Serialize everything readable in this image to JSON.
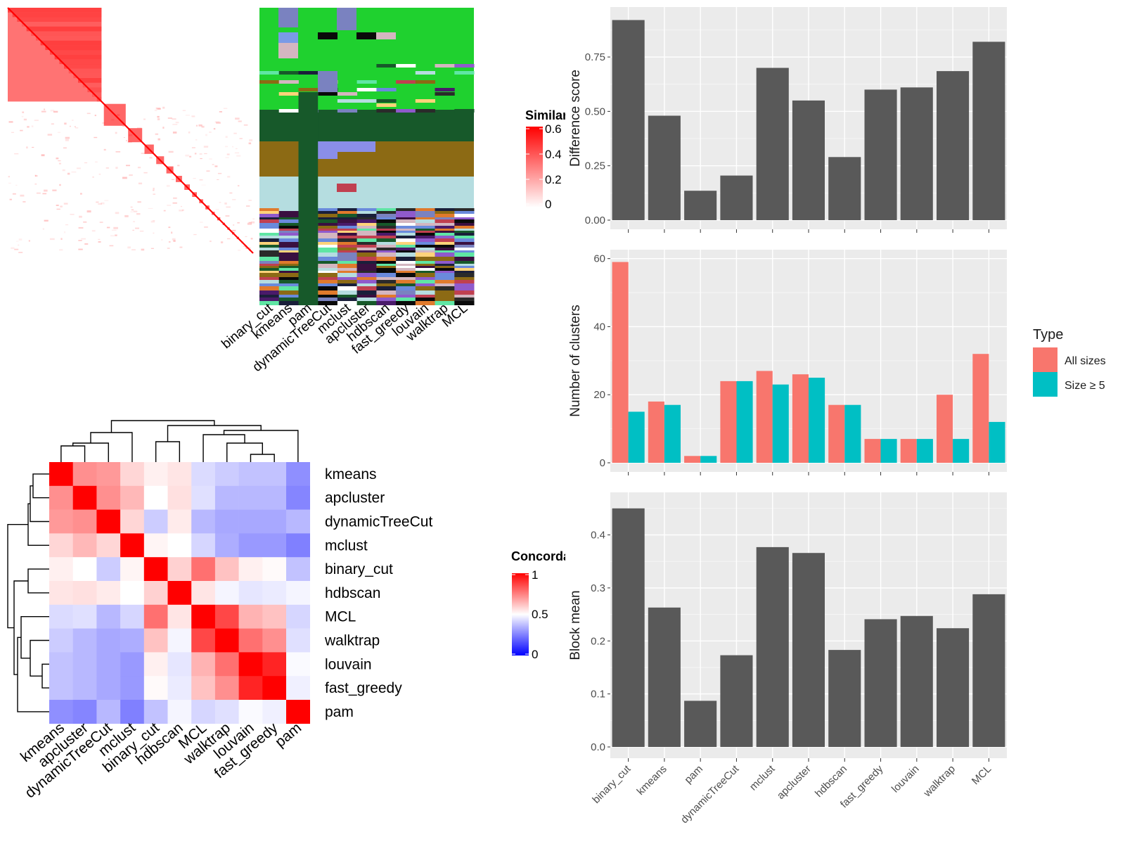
{
  "methods_x": [
    "binary_cut",
    "kmeans",
    "pam",
    "dynamicTreeCut",
    "mclust",
    "apcluster",
    "hdbscan",
    "fast_greedy",
    "louvain",
    "walktrap",
    "MCL"
  ],
  "colors": {
    "panel_bg": "#ebebeb",
    "grid_major": "#ffffff",
    "bar": "#595959",
    "all_sizes": "#f8766d",
    "size_ge5": "#00bfc4",
    "sim_max": "#ff0000",
    "conc_high": "#ff0000",
    "conc_mid": "#ffffff",
    "conc_low": "#0000ff"
  },
  "similarity_heatmap": {
    "legend_title": "Similarity",
    "legend_ticks": [
      "0.6",
      "0.4",
      "0.2",
      "0"
    ],
    "block_sizes": [
      120,
      28,
      18,
      12,
      10,
      9,
      8,
      7,
      6,
      5,
      5,
      4,
      4,
      3,
      3,
      3,
      3,
      2,
      2,
      2
    ]
  },
  "membership_panel": {
    "labels": [
      "binary_cut",
      "kmeans",
      "pam",
      "dynamicTreeCut",
      "mclust",
      "apcluster",
      "hdbscan",
      "fast_greedy",
      "louvain",
      "walktrap",
      "MCL"
    ]
  },
  "concordance_heatmap": {
    "legend_title": "Concordance",
    "legend_ticks": [
      "1",
      "0.5",
      "0"
    ],
    "row_labels": [
      "kmeans",
      "apcluster",
      "dynamicTreeCut",
      "mclust",
      "binary_cut",
      "hdbscan",
      "MCL",
      "walktrap",
      "louvain",
      "fast_greedy",
      "pam"
    ],
    "col_labels": [
      "kmeans",
      "apcluster",
      "dynamicTreeCut",
      "mclust",
      "binary_cut",
      "hdbscan",
      "MCL",
      "walktrap",
      "louvain",
      "fast_greedy",
      "pam"
    ],
    "values": [
      [
        1.0,
        0.72,
        0.7,
        0.58,
        0.53,
        0.55,
        0.43,
        0.4,
        0.38,
        0.38,
        0.28
      ],
      [
        0.72,
        1.0,
        0.72,
        0.64,
        0.5,
        0.56,
        0.44,
        0.36,
        0.36,
        0.36,
        0.26
      ],
      [
        0.7,
        0.72,
        1.0,
        0.58,
        0.4,
        0.54,
        0.36,
        0.33,
        0.33,
        0.33,
        0.36
      ],
      [
        0.58,
        0.64,
        0.58,
        1.0,
        0.52,
        0.5,
        0.42,
        0.34,
        0.3,
        0.3,
        0.25
      ],
      [
        0.53,
        0.5,
        0.4,
        0.52,
        1.0,
        0.59,
        0.78,
        0.62,
        0.53,
        0.51,
        0.38
      ],
      [
        0.55,
        0.56,
        0.54,
        0.5,
        0.59,
        1.0,
        0.55,
        0.48,
        0.45,
        0.46,
        0.48
      ],
      [
        0.43,
        0.44,
        0.36,
        0.42,
        0.78,
        0.55,
        1.0,
        0.86,
        0.65,
        0.62,
        0.42
      ],
      [
        0.4,
        0.36,
        0.33,
        0.34,
        0.62,
        0.48,
        0.86,
        1.0,
        0.78,
        0.72,
        0.44
      ],
      [
        0.38,
        0.36,
        0.33,
        0.3,
        0.53,
        0.45,
        0.65,
        0.78,
        1.0,
        0.93,
        0.49
      ],
      [
        0.38,
        0.36,
        0.33,
        0.3,
        0.51,
        0.46,
        0.62,
        0.72,
        0.93,
        1.0,
        0.47
      ],
      [
        0.28,
        0.26,
        0.36,
        0.25,
        0.38,
        0.48,
        0.42,
        0.44,
        0.49,
        0.47,
        1.0
      ]
    ]
  },
  "chart_data": [
    {
      "type": "bar",
      "title": "",
      "xlabel": "",
      "ylabel": "Difference score",
      "categories": [
        "binary_cut",
        "kmeans",
        "pam",
        "dynamicTreeCut",
        "mclust",
        "apcluster",
        "hdbscan",
        "fast_greedy",
        "louvain",
        "walktrap",
        "MCL"
      ],
      "values": [
        0.92,
        0.48,
        0.135,
        0.205,
        0.7,
        0.55,
        0.29,
        0.6,
        0.61,
        0.685,
        0.82
      ],
      "ylim": [
        0,
        0.97
      ],
      "yticks": [
        "0.00",
        "0.25",
        "0.50",
        "0.75"
      ],
      "grid": true
    },
    {
      "type": "bar",
      "title": "",
      "xlabel": "",
      "ylabel": "Number of clusters",
      "categories": [
        "binary_cut",
        "kmeans",
        "pam",
        "dynamicTreeCut",
        "mclust",
        "apcluster",
        "hdbscan",
        "fast_greedy",
        "louvain",
        "walktrap",
        "MCL"
      ],
      "series": [
        {
          "name": "All sizes",
          "values": [
            59,
            18,
            2,
            24,
            27,
            26,
            17,
            7,
            7,
            20,
            32
          ]
        },
        {
          "name": "Size ≥ 5",
          "values": [
            15,
            17,
            2,
            24,
            23,
            25,
            17,
            7,
            7,
            7,
            12
          ]
        }
      ],
      "ylim": [
        0,
        62
      ],
      "yticks": [
        "0",
        "20",
        "40",
        "60"
      ],
      "legend_title": "Type",
      "legend_position": "right",
      "grid": true
    },
    {
      "type": "bar",
      "title": "",
      "xlabel": "",
      "ylabel": "Block mean",
      "categories": [
        "binary_cut",
        "kmeans",
        "pam",
        "dynamicTreeCut",
        "mclust",
        "apcluster",
        "hdbscan",
        "fast_greedy",
        "louvain",
        "walktrap",
        "MCL"
      ],
      "values": [
        0.45,
        0.263,
        0.087,
        0.173,
        0.377,
        0.366,
        0.183,
        0.241,
        0.247,
        0.224,
        0.288
      ],
      "ylim": [
        0,
        0.475
      ],
      "yticks": [
        "0.0",
        "0.1",
        "0.2",
        "0.3",
        "0.4"
      ],
      "grid": true
    }
  ]
}
